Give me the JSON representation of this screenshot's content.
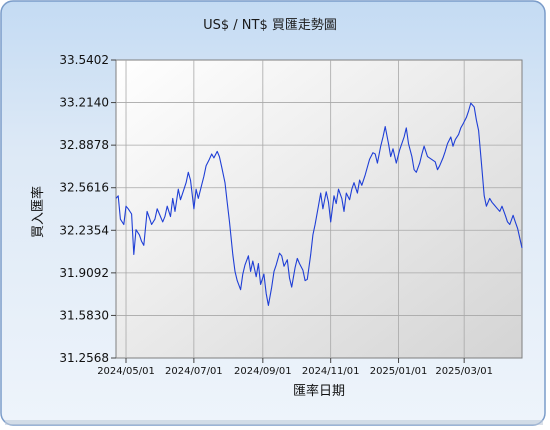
{
  "chart_data": {
    "type": "line",
    "title": "US$ / NT$ 買匯走勢圖",
    "xlabel": "匯率日期",
    "ylabel": "買入匯率",
    "ylim": [
      31.2568,
      33.5402
    ],
    "xlim": [
      "2024-04-22",
      "2025-04-22"
    ],
    "y_ticks": [
      "33.5402",
      "33.2140",
      "32.8878",
      "32.5616",
      "32.2354",
      "31.9092",
      "31.5830",
      "31.2568"
    ],
    "x_ticks": [
      {
        "date": "2024-05-01",
        "label": "2024/05/01"
      },
      {
        "date": "2024-07-01",
        "label": "2024/07/01"
      },
      {
        "date": "2024-09-01",
        "label": "2024/09/01"
      },
      {
        "date": "2024-11-01",
        "label": "2024/11/01"
      },
      {
        "date": "2025-01-01",
        "label": "2025/01/01"
      },
      {
        "date": "2025-03-01",
        "label": "2025/03/01"
      }
    ],
    "grid": true,
    "colors": {
      "line": "#1f3fd6",
      "plot_bg": "#dcdcdc",
      "grid": "#a8a8a8",
      "frame_bg": "#a7c7ec",
      "panel": "#ffffff",
      "border": "#7a9cc9"
    },
    "series": [
      {
        "values": [
          [
            "2024-04-22",
            32.48
          ],
          [
            "2024-04-24",
            32.5
          ],
          [
            "2024-04-26",
            32.32
          ],
          [
            "2024-04-29",
            32.28
          ],
          [
            "2024-05-01",
            32.42
          ],
          [
            "2024-05-03",
            32.4
          ],
          [
            "2024-05-06",
            32.36
          ],
          [
            "2024-05-08",
            32.05
          ],
          [
            "2024-05-10",
            32.24
          ],
          [
            "2024-05-13",
            32.2
          ],
          [
            "2024-05-15",
            32.15
          ],
          [
            "2024-05-17",
            32.12
          ],
          [
            "2024-05-20",
            32.38
          ],
          [
            "2024-05-22",
            32.33
          ],
          [
            "2024-05-24",
            32.28
          ],
          [
            "2024-05-27",
            32.32
          ],
          [
            "2024-05-29",
            32.4
          ],
          [
            "2024-05-31",
            32.36
          ],
          [
            "2024-06-03",
            32.3
          ],
          [
            "2024-06-05",
            32.34
          ],
          [
            "2024-06-07",
            32.42
          ],
          [
            "2024-06-10",
            32.34
          ],
          [
            "2024-06-12",
            32.48
          ],
          [
            "2024-06-14",
            32.38
          ],
          [
            "2024-06-17",
            32.55
          ],
          [
            "2024-06-19",
            32.47
          ],
          [
            "2024-06-21",
            32.52
          ],
          [
            "2024-06-24",
            32.6
          ],
          [
            "2024-06-26",
            32.68
          ],
          [
            "2024-06-28",
            32.62
          ],
          [
            "2024-07-01",
            32.4
          ],
          [
            "2024-07-03",
            32.55
          ],
          [
            "2024-07-05",
            32.48
          ],
          [
            "2024-07-08",
            32.58
          ],
          [
            "2024-07-10",
            32.65
          ],
          [
            "2024-07-12",
            32.73
          ],
          [
            "2024-07-15",
            32.78
          ],
          [
            "2024-07-17",
            32.82
          ],
          [
            "2024-07-19",
            32.79
          ],
          [
            "2024-07-22",
            32.84
          ],
          [
            "2024-07-24",
            32.8
          ],
          [
            "2024-07-26",
            32.72
          ],
          [
            "2024-07-29",
            32.6
          ],
          [
            "2024-07-31",
            32.45
          ],
          [
            "2024-08-02",
            32.3
          ],
          [
            "2024-08-05",
            32.05
          ],
          [
            "2024-08-07",
            31.92
          ],
          [
            "2024-08-09",
            31.85
          ],
          [
            "2024-08-12",
            31.78
          ],
          [
            "2024-08-14",
            31.9
          ],
          [
            "2024-08-16",
            31.97
          ],
          [
            "2024-08-19",
            32.04
          ],
          [
            "2024-08-21",
            31.92
          ],
          [
            "2024-08-23",
            32.0
          ],
          [
            "2024-08-26",
            31.88
          ],
          [
            "2024-08-28",
            31.98
          ],
          [
            "2024-08-30",
            31.82
          ],
          [
            "2024-09-02",
            31.9
          ],
          [
            "2024-09-04",
            31.75
          ],
          [
            "2024-09-06",
            31.66
          ],
          [
            "2024-09-09",
            31.8
          ],
          [
            "2024-09-11",
            31.92
          ],
          [
            "2024-09-13",
            31.97
          ],
          [
            "2024-09-16",
            32.06
          ],
          [
            "2024-09-18",
            32.04
          ],
          [
            "2024-09-20",
            31.96
          ],
          [
            "2024-09-23",
            32.01
          ],
          [
            "2024-09-25",
            31.87
          ],
          [
            "2024-09-27",
            31.8
          ],
          [
            "2024-09-30",
            31.95
          ],
          [
            "2024-10-02",
            32.02
          ],
          [
            "2024-10-04",
            31.98
          ],
          [
            "2024-10-07",
            31.93
          ],
          [
            "2024-10-09",
            31.85
          ],
          [
            "2024-10-11",
            31.86
          ],
          [
            "2024-10-14",
            32.05
          ],
          [
            "2024-10-16",
            32.2
          ],
          [
            "2024-10-18",
            32.28
          ],
          [
            "2024-10-21",
            32.42
          ],
          [
            "2024-10-23",
            32.52
          ],
          [
            "2024-10-25",
            32.4
          ],
          [
            "2024-10-28",
            32.53
          ],
          [
            "2024-10-30",
            32.45
          ],
          [
            "2024-11-01",
            32.3
          ],
          [
            "2024-11-04",
            32.5
          ],
          [
            "2024-11-06",
            32.44
          ],
          [
            "2024-11-08",
            32.55
          ],
          [
            "2024-11-11",
            32.48
          ],
          [
            "2024-11-13",
            32.38
          ],
          [
            "2024-11-15",
            32.52
          ],
          [
            "2024-11-18",
            32.47
          ],
          [
            "2024-11-20",
            32.55
          ],
          [
            "2024-11-22",
            32.6
          ],
          [
            "2024-11-25",
            32.52
          ],
          [
            "2024-11-27",
            32.62
          ],
          [
            "2024-11-29",
            32.58
          ],
          [
            "2024-12-02",
            32.66
          ],
          [
            "2024-12-04",
            32.72
          ],
          [
            "2024-12-06",
            32.78
          ],
          [
            "2024-12-09",
            32.83
          ],
          [
            "2024-12-11",
            32.82
          ],
          [
            "2024-12-13",
            32.75
          ],
          [
            "2024-12-16",
            32.88
          ],
          [
            "2024-12-18",
            32.95
          ],
          [
            "2024-12-20",
            33.03
          ],
          [
            "2024-12-23",
            32.9
          ],
          [
            "2024-12-25",
            32.8
          ],
          [
            "2024-12-27",
            32.86
          ],
          [
            "2024-12-30",
            32.75
          ],
          [
            "2025-01-02",
            32.85
          ],
          [
            "2025-01-06",
            32.95
          ],
          [
            "2025-01-08",
            33.02
          ],
          [
            "2025-01-10",
            32.9
          ],
          [
            "2025-01-13",
            32.8
          ],
          [
            "2025-01-15",
            32.7
          ],
          [
            "2025-01-17",
            32.68
          ],
          [
            "2025-01-20",
            32.75
          ],
          [
            "2025-01-22",
            32.82
          ],
          [
            "2025-01-24",
            32.88
          ],
          [
            "2025-01-27",
            32.8
          ],
          [
            "2025-02-03",
            32.76
          ],
          [
            "2025-02-05",
            32.7
          ],
          [
            "2025-02-07",
            32.73
          ],
          [
            "2025-02-10",
            32.79
          ],
          [
            "2025-02-12",
            32.84
          ],
          [
            "2025-02-14",
            32.9
          ],
          [
            "2025-02-17",
            32.95
          ],
          [
            "2025-02-19",
            32.88
          ],
          [
            "2025-02-21",
            32.93
          ],
          [
            "2025-02-24",
            32.97
          ],
          [
            "2025-02-26",
            33.02
          ],
          [
            "2025-02-28",
            33.05
          ],
          [
            "2025-03-03",
            33.1
          ],
          [
            "2025-03-05",
            33.15
          ],
          [
            "2025-03-07",
            33.21
          ],
          [
            "2025-03-10",
            33.18
          ],
          [
            "2025-03-12",
            33.08
          ],
          [
            "2025-03-14",
            33.0
          ],
          [
            "2025-03-17",
            32.7
          ],
          [
            "2025-03-19",
            32.5
          ],
          [
            "2025-03-21",
            32.42
          ],
          [
            "2025-03-24",
            32.48
          ],
          [
            "2025-03-26",
            32.45
          ],
          [
            "2025-03-28",
            32.43
          ],
          [
            "2025-03-31",
            32.4
          ],
          [
            "2025-04-02",
            32.38
          ],
          [
            "2025-04-04",
            32.42
          ],
          [
            "2025-04-07",
            32.35
          ],
          [
            "2025-04-09",
            32.3
          ],
          [
            "2025-04-11",
            32.28
          ],
          [
            "2025-04-14",
            32.35
          ],
          [
            "2025-04-16",
            32.3
          ],
          [
            "2025-04-18",
            32.25
          ],
          [
            "2025-04-22",
            32.1
          ]
        ]
      }
    ]
  }
}
